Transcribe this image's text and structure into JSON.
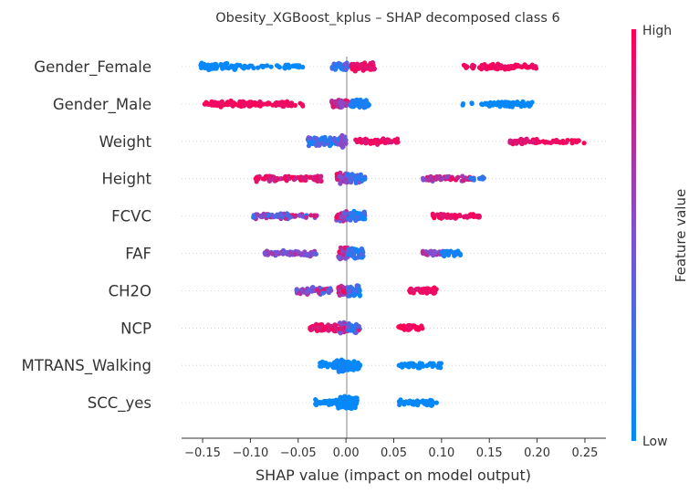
{
  "chart_data": {
    "type": "scatter",
    "title": "Obesity_XGBoost_kplus – SHAP decomposed class 6",
    "xlabel": "SHAP value (impact on model output)",
    "xlim": [
      -0.172,
      0.272
    ],
    "xticks": [
      -0.15,
      -0.1,
      -0.05,
      0.0,
      0.05,
      0.1,
      0.15,
      0.2,
      0.25
    ],
    "xtick_labels": [
      "−0.15",
      "−0.10",
      "−0.05",
      "0.00",
      "0.05",
      "0.10",
      "0.15",
      "0.20",
      "0.25"
    ],
    "zero_line": true,
    "colorbar": {
      "label": "Feature value",
      "high_label": "High",
      "low_label": "Low",
      "low_color": "#008bfb",
      "mid_color": "#7c52d5",
      "high_color": "#ff0052"
    },
    "features": [
      {
        "name": "Gender_Female",
        "clusters": [
          {
            "min": -0.152,
            "max": -0.115,
            "n": 70,
            "value_low": 0.0,
            "value_high": 0.05
          },
          {
            "min": -0.115,
            "max": -0.045,
            "n": 45,
            "value_low": 0.0,
            "value_high": 0.05
          },
          {
            "min": -0.015,
            "max": 0.002,
            "n": 40,
            "value_low": 0.0,
            "value_high": 0.5
          },
          {
            "min": 0.005,
            "max": 0.03,
            "n": 60,
            "value_low": 0.85,
            "value_high": 1.0
          },
          {
            "min": 0.12,
            "max": 0.14,
            "n": 10,
            "value_low": 0.9,
            "value_high": 1.0
          },
          {
            "min": 0.14,
            "max": 0.2,
            "n": 70,
            "value_low": 0.9,
            "value_high": 1.0
          }
        ]
      },
      {
        "name": "Gender_Male",
        "clusters": [
          {
            "min": -0.148,
            "max": -0.09,
            "n": 80,
            "value_low": 0.9,
            "value_high": 1.0
          },
          {
            "min": -0.09,
            "max": -0.045,
            "n": 40,
            "value_low": 0.9,
            "value_high": 1.0
          },
          {
            "min": -0.015,
            "max": 0.002,
            "n": 40,
            "value_low": 0.5,
            "value_high": 1.0
          },
          {
            "min": 0.005,
            "max": 0.025,
            "n": 55,
            "value_low": 0.0,
            "value_high": 0.15
          },
          {
            "min": 0.12,
            "max": 0.15,
            "n": 10,
            "value_low": 0.0,
            "value_high": 0.05
          },
          {
            "min": 0.15,
            "max": 0.195,
            "n": 60,
            "value_low": 0.0,
            "value_high": 0.05
          }
        ]
      },
      {
        "name": "Weight",
        "clusters": [
          {
            "min": -0.04,
            "max": -0.005,
            "n": 90,
            "value_low": 0.05,
            "value_high": 0.5
          },
          {
            "min": -0.005,
            "max": 0.0,
            "n": 25,
            "value_low": 0.4,
            "value_high": 0.6
          },
          {
            "min": 0.01,
            "max": 0.055,
            "n": 60,
            "value_low": 0.85,
            "value_high": 1.0
          },
          {
            "min": 0.17,
            "max": 0.2,
            "n": 35,
            "value_low": 0.8,
            "value_high": 1.0
          },
          {
            "min": 0.2,
            "max": 0.25,
            "n": 30,
            "value_low": 0.9,
            "value_high": 1.0
          }
        ]
      },
      {
        "name": "Height",
        "clusters": [
          {
            "min": -0.095,
            "max": -0.025,
            "n": 90,
            "value_low": 0.75,
            "value_high": 1.0
          },
          {
            "min": -0.01,
            "max": 0.002,
            "n": 40,
            "value_low": 0.4,
            "value_high": 1.0
          },
          {
            "min": 0.002,
            "max": 0.02,
            "n": 50,
            "value_low": 0.05,
            "value_high": 0.5
          },
          {
            "min": 0.08,
            "max": 0.135,
            "n": 55,
            "value_low": 0.5,
            "value_high": 0.95
          },
          {
            "min": 0.13,
            "max": 0.145,
            "n": 10,
            "value_low": 0.1,
            "value_high": 0.3
          }
        ]
      },
      {
        "name": "FCVC",
        "clusters": [
          {
            "min": -0.098,
            "max": -0.03,
            "n": 80,
            "value_low": 0.1,
            "value_high": 0.9
          },
          {
            "min": -0.01,
            "max": 0.002,
            "n": 40,
            "value_low": 0.3,
            "value_high": 1.0
          },
          {
            "min": 0.002,
            "max": 0.02,
            "n": 50,
            "value_low": 0.0,
            "value_high": 0.4
          },
          {
            "min": 0.09,
            "max": 0.14,
            "n": 55,
            "value_low": 0.85,
            "value_high": 1.0
          }
        ]
      },
      {
        "name": "FAF",
        "clusters": [
          {
            "min": -0.085,
            "max": -0.03,
            "n": 70,
            "value_low": 0.35,
            "value_high": 0.7
          },
          {
            "min": -0.008,
            "max": 0.002,
            "n": 40,
            "value_low": 0.4,
            "value_high": 1.0
          },
          {
            "min": 0.002,
            "max": 0.018,
            "n": 45,
            "value_low": 0.0,
            "value_high": 0.3
          },
          {
            "min": 0.08,
            "max": 0.105,
            "n": 35,
            "value_low": 0.5,
            "value_high": 0.8
          },
          {
            "min": 0.1,
            "max": 0.12,
            "n": 25,
            "value_low": 0.0,
            "value_high": 0.15
          }
        ]
      },
      {
        "name": "CH2O",
        "clusters": [
          {
            "min": -0.052,
            "max": -0.015,
            "n": 70,
            "value_low": 0.2,
            "value_high": 0.9
          },
          {
            "min": -0.008,
            "max": 0.002,
            "n": 40,
            "value_low": 0.5,
            "value_high": 1.0
          },
          {
            "min": 0.002,
            "max": 0.015,
            "n": 45,
            "value_low": 0.0,
            "value_high": 0.5
          },
          {
            "min": 0.065,
            "max": 0.095,
            "n": 45,
            "value_low": 0.85,
            "value_high": 1.0
          }
        ]
      },
      {
        "name": "NCP",
        "clusters": [
          {
            "min": -0.038,
            "max": -0.008,
            "n": 60,
            "value_low": 0.8,
            "value_high": 1.0
          },
          {
            "min": -0.008,
            "max": 0.002,
            "n": 40,
            "value_low": 0.3,
            "value_high": 1.0
          },
          {
            "min": 0.002,
            "max": 0.015,
            "n": 40,
            "value_low": 0.0,
            "value_high": 0.9
          },
          {
            "min": 0.055,
            "max": 0.08,
            "n": 40,
            "value_low": 0.9,
            "value_high": 1.0
          }
        ]
      },
      {
        "name": "MTRANS_Walking",
        "clusters": [
          {
            "min": -0.028,
            "max": -0.01,
            "n": 30,
            "value_low": 0.0,
            "value_high": 0.05
          },
          {
            "min": -0.01,
            "max": 0.003,
            "n": 60,
            "value_low": 0.0,
            "value_high": 0.1
          },
          {
            "min": 0.003,
            "max": 0.015,
            "n": 35,
            "value_low": 0.0,
            "value_high": 0.05
          },
          {
            "min": 0.055,
            "max": 0.1,
            "n": 50,
            "value_low": 0.0,
            "value_high": 0.05
          }
        ]
      },
      {
        "name": "SCC_yes",
        "clusters": [
          {
            "min": -0.032,
            "max": -0.008,
            "n": 35,
            "value_low": 0.0,
            "value_high": 0.05
          },
          {
            "min": -0.008,
            "max": 0.003,
            "n": 60,
            "value_low": 0.0,
            "value_high": 0.05
          },
          {
            "min": 0.003,
            "max": 0.012,
            "n": 35,
            "value_low": 0.0,
            "value_high": 0.05
          },
          {
            "min": 0.055,
            "max": 0.095,
            "n": 55,
            "value_low": 0.0,
            "value_high": 0.05
          }
        ]
      }
    ]
  }
}
